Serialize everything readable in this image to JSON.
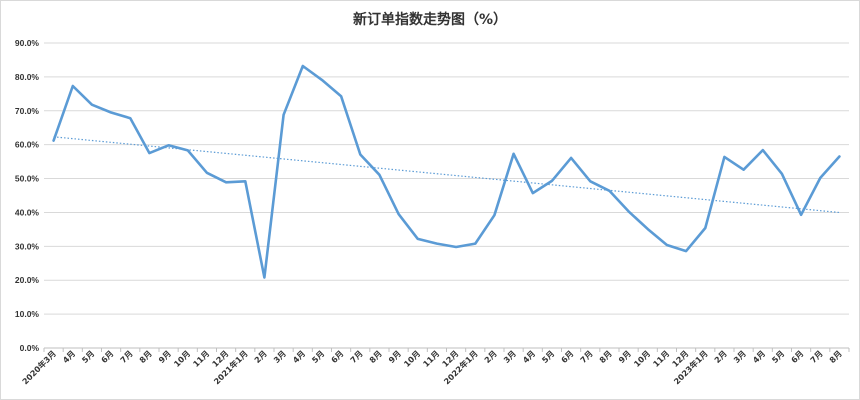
{
  "chart_data": {
    "type": "line",
    "title": "新订单指数走势图（%）",
    "xlabel": "",
    "ylabel": "",
    "ylim": [
      0,
      90
    ],
    "y_ticks": [
      "0.0%",
      "10.0%",
      "20.0%",
      "30.0%",
      "40.0%",
      "50.0%",
      "60.0%",
      "70.0%",
      "80.0%",
      "90.0%"
    ],
    "grid": true,
    "legend": "none",
    "categories": [
      "2020年3月",
      "4月",
      "5月",
      "6月",
      "7月",
      "8月",
      "9月",
      "10月",
      "11月",
      "12月",
      "2021年1月",
      "2月",
      "3月",
      "4月",
      "5月",
      "6月",
      "7月",
      "8月",
      "9月",
      "10月",
      "11月",
      "12月",
      "2022年1月",
      "2月",
      "3月",
      "4月",
      "5月",
      "6月",
      "7月",
      "8月",
      "9月",
      "10月",
      "11月",
      "12月",
      "2023年1月",
      "2月",
      "3月",
      "4月",
      "5月",
      "6月",
      "7月",
      "8月"
    ],
    "series": [
      {
        "color": "#5b9bd5",
        "values": [
          61.2,
          77.3,
          71.8,
          69.5,
          67.8,
          57.5,
          59.8,
          58.3,
          51.7,
          48.9,
          49.2,
          20.8,
          68.8,
          83.2,
          79.1,
          74.3,
          57.1,
          51.1,
          39.5,
          32.2,
          30.8,
          29.8,
          30.8,
          39.2,
          57.3,
          45.7,
          49.3,
          56.1,
          49.2,
          46.4,
          40.3,
          35.1,
          30.4,
          28.6,
          35.4,
          56.4,
          52.6,
          58.4,
          51.4,
          39.3,
          50.2,
          56.5
        ]
      }
    ],
    "trendline": {
      "type": "linear",
      "color": "#5b9bd5",
      "style": "dotted"
    }
  }
}
